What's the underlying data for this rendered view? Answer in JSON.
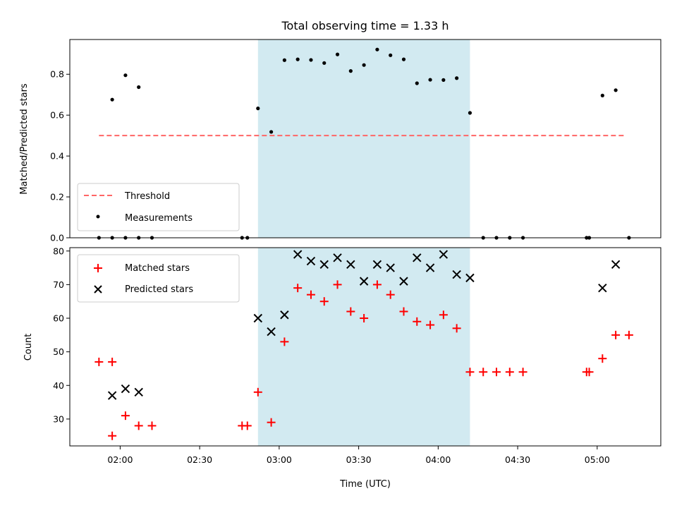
{
  "chart_data": {
    "title": "Total observing time = 1.33 h",
    "xlabel": "Time (UTC)",
    "x_ticks": [
      "02:00",
      "02:30",
      "03:00",
      "03:30",
      "04:00",
      "04:30",
      "05:00"
    ],
    "xlim": [
      "01:41",
      "05:24"
    ],
    "shaded_span": {
      "start": "02:52",
      "end": "04:12",
      "color": "#add8e6"
    },
    "panels": [
      {
        "type": "scatter",
        "ylabel": "Matched/Predicted stars",
        "ylim": [
          0,
          0.97
        ],
        "y_ticks": [
          "0.0",
          "0.2",
          "0.4",
          "0.6",
          "0.8"
        ],
        "legend_position": "lower-left",
        "series": [
          {
            "name": "Threshold",
            "kind": "dashed-line",
            "color": "#ff6666",
            "x": [
              "01:52",
              "05:10"
            ],
            "y": [
              0.5,
              0.5
            ]
          },
          {
            "name": "Measurements",
            "kind": "dot",
            "color": "#000000",
            "points": [
              [
                "01:52",
                0.0
              ],
              [
                "01:57",
                0.0
              ],
              [
                "02:02",
                0.0
              ],
              [
                "02:07",
                0.0
              ],
              [
                "02:12",
                0.0
              ],
              [
                "02:46",
                0.0
              ],
              [
                "02:48",
                0.0
              ],
              [
                "01:57",
                0.676
              ],
              [
                "02:02",
                0.795
              ],
              [
                "02:07",
                0.737
              ],
              [
                "02:52",
                0.633
              ],
              [
                "02:57",
                0.518
              ],
              [
                "03:02",
                0.869
              ],
              [
                "03:07",
                0.873
              ],
              [
                "03:12",
                0.87
              ],
              [
                "03:17",
                0.855
              ],
              [
                "03:22",
                0.897
              ],
              [
                "03:27",
                0.816
              ],
              [
                "03:32",
                0.845
              ],
              [
                "03:37",
                0.921
              ],
              [
                "03:42",
                0.893
              ],
              [
                "03:47",
                0.873
              ],
              [
                "03:52",
                0.756
              ],
              [
                "03:57",
                0.773
              ],
              [
                "04:02",
                0.772
              ],
              [
                "04:07",
                0.781
              ],
              [
                "04:12",
                0.611
              ],
              [
                "04:17",
                0.0
              ],
              [
                "04:22",
                0.0
              ],
              [
                "04:27",
                0.0
              ],
              [
                "04:32",
                0.0
              ],
              [
                "04:56",
                0.0
              ],
              [
                "04:57",
                0.0
              ],
              [
                "05:02",
                0.696
              ],
              [
                "05:07",
                0.722
              ],
              [
                "05:12",
                0.0
              ]
            ]
          }
        ]
      },
      {
        "type": "scatter",
        "ylabel": "Count",
        "ylim": [
          22,
          81
        ],
        "y_ticks": [
          "30",
          "40",
          "50",
          "60",
          "70",
          "80"
        ],
        "legend_position": "upper-left",
        "series": [
          {
            "name": "Matched stars",
            "kind": "plus",
            "color": "#ff0000",
            "points": [
              [
                "01:52",
                47
              ],
              [
                "01:57",
                47
              ],
              [
                "01:57",
                25
              ],
              [
                "02:02",
                31
              ],
              [
                "02:07",
                28
              ],
              [
                "02:12",
                28
              ],
              [
                "02:46",
                28
              ],
              [
                "02:48",
                28
              ],
              [
                "02:52",
                38
              ],
              [
                "02:57",
                29
              ],
              [
                "03:02",
                53
              ],
              [
                "03:07",
                69
              ],
              [
                "03:12",
                67
              ],
              [
                "03:17",
                65
              ],
              [
                "03:22",
                70
              ],
              [
                "03:27",
                62
              ],
              [
                "03:32",
                60
              ],
              [
                "03:37",
                70
              ],
              [
                "03:42",
                67
              ],
              [
                "03:47",
                62
              ],
              [
                "03:52",
                59
              ],
              [
                "03:57",
                58
              ],
              [
                "04:02",
                61
              ],
              [
                "04:07",
                57
              ],
              [
                "04:12",
                44
              ],
              [
                "04:17",
                44
              ],
              [
                "04:22",
                44
              ],
              [
                "04:27",
                44
              ],
              [
                "04:32",
                44
              ],
              [
                "04:56",
                44
              ],
              [
                "04:57",
                44
              ],
              [
                "05:02",
                48
              ],
              [
                "05:07",
                55
              ],
              [
                "05:12",
                55
              ]
            ]
          },
          {
            "name": "Predicted stars",
            "kind": "cross",
            "color": "#000000",
            "points": [
              [
                "01:57",
                37
              ],
              [
                "02:02",
                39
              ],
              [
                "02:07",
                38
              ],
              [
                "02:52",
                60
              ],
              [
                "02:57",
                56
              ],
              [
                "03:02",
                61
              ],
              [
                "03:07",
                79
              ],
              [
                "03:12",
                77
              ],
              [
                "03:17",
                76
              ],
              [
                "03:22",
                78
              ],
              [
                "03:27",
                76
              ],
              [
                "03:32",
                71
              ],
              [
                "03:37",
                76
              ],
              [
                "03:42",
                75
              ],
              [
                "03:47",
                71
              ],
              [
                "03:52",
                78
              ],
              [
                "03:57",
                75
              ],
              [
                "04:02",
                79
              ],
              [
                "04:07",
                73
              ],
              [
                "04:12",
                72
              ],
              [
                "05:02",
                69
              ],
              [
                "05:07",
                76
              ]
            ]
          }
        ]
      }
    ]
  }
}
